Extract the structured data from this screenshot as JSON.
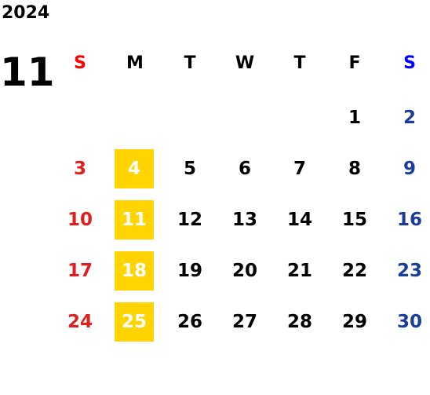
{
  "year": "2024",
  "month": "11",
  "weekdays": [
    "S",
    "M",
    "T",
    "W",
    "T",
    "F",
    "S"
  ],
  "weekday_colors": [
    "#ff0000",
    "#000000",
    "#000000",
    "#000000",
    "#000000",
    "#000000",
    "#0000ff"
  ],
  "day_colors": [
    "#e0201e",
    "#000000",
    "#000000",
    "#000000",
    "#000000",
    "#000000",
    "#1a3d9c"
  ],
  "highlight_column": 1,
  "highlight_color": "#ffd400",
  "highlight_text_color": "#ffffff",
  "weeks": [
    [
      null,
      null,
      null,
      null,
      null,
      1,
      2
    ],
    [
      3,
      4,
      5,
      6,
      7,
      8,
      9
    ],
    [
      10,
      11,
      12,
      13,
      14,
      15,
      16
    ],
    [
      17,
      18,
      19,
      20,
      21,
      22,
      23
    ],
    [
      24,
      25,
      26,
      27,
      28,
      29,
      30
    ]
  ]
}
